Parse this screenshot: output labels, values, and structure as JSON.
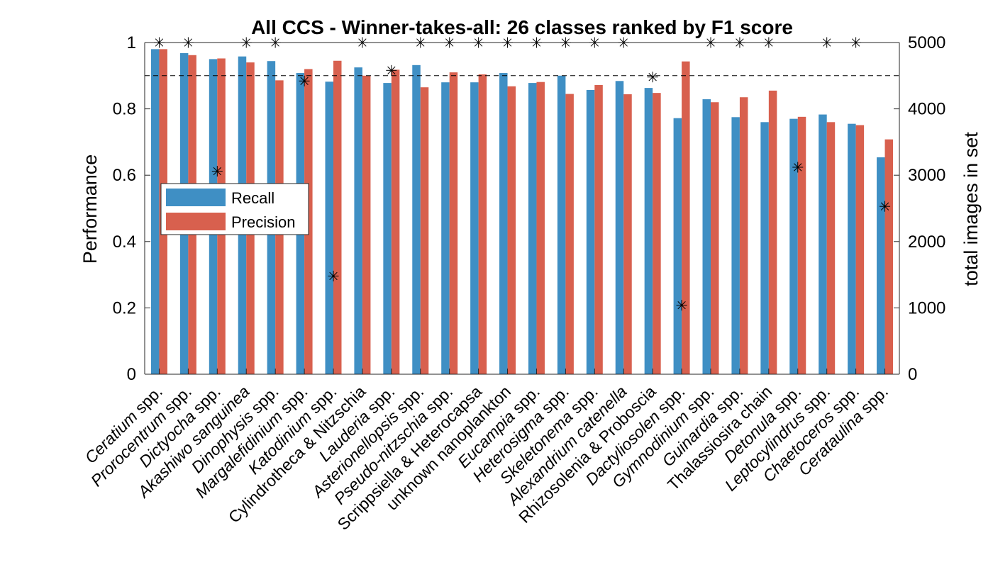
{
  "chart_data": {
    "type": "bar",
    "title": "All CCS - Winner-takes-all: 26 classes ranked by F1 score",
    "ylabel": "Performance",
    "ylabel_right": "total images in set",
    "ylim": [
      0,
      1
    ],
    "ylim_right": [
      0,
      5000
    ],
    "yticks": [
      "0",
      "0.2",
      "0.4",
      "0.6",
      "0.8",
      "1"
    ],
    "yticks_right": [
      "0",
      "1000",
      "2000",
      "3000",
      "4000",
      "5000"
    ],
    "reference_line": 0.9,
    "legend_position": "left-middle",
    "categories": [
      {
        "name": "Ceratium",
        "suffix": " spp.",
        "italic": true
      },
      {
        "name": "Prorocentrum",
        "suffix": " spp.",
        "italic": true
      },
      {
        "name": "Dictyocha",
        "suffix": " spp.",
        "italic": true
      },
      {
        "name": "Akashiwo sanguinea",
        "suffix": "",
        "italic": true
      },
      {
        "name": "Dinophysis",
        "suffix": " spp.",
        "italic": true
      },
      {
        "name": "Margalefidinium",
        "suffix": " spp.",
        "italic": true
      },
      {
        "name": "Katodinium",
        "suffix": " spp.",
        "italic": true
      },
      {
        "name": "Cylindrotheca & Nitzschia",
        "suffix": "",
        "italic": false
      },
      {
        "name": "Lauderia",
        "suffix": " spp.",
        "italic": true
      },
      {
        "name": "Asterionellopsis",
        "suffix": " spp.",
        "italic": true
      },
      {
        "name": "Pseudo-nitzschia",
        "suffix": " spp.",
        "italic": true
      },
      {
        "name": "Scrippsiella & Heterocapsa",
        "suffix": "",
        "italic": false
      },
      {
        "name": "unknown nanoplankton",
        "suffix": "",
        "italic": false
      },
      {
        "name": "Eucampia",
        "suffix": " spp.",
        "italic": true
      },
      {
        "name": "Heterosigma",
        "suffix": " spp.",
        "italic": true
      },
      {
        "name": "Skeletonema",
        "suffix": " spp.",
        "italic": true
      },
      {
        "name": "Alexandrium catenella",
        "suffix": "",
        "italic": true
      },
      {
        "name": "Rhizosolenia & Proboscia",
        "suffix": "",
        "italic": false
      },
      {
        "name": "Dactyliosolen",
        "suffix": " spp.",
        "italic": true
      },
      {
        "name": "Gymnodinium",
        "suffix": " spp.",
        "italic": true
      },
      {
        "name": "Guinardia",
        "suffix": " spp.",
        "italic": true
      },
      {
        "name": "Thalassiosira chain",
        "suffix": "",
        "italic": false
      },
      {
        "name": "Detonula",
        "suffix": " spp.",
        "italic": true
      },
      {
        "name": "Leptocylindrus",
        "suffix": " spp.",
        "italic": true
      },
      {
        "name": "Chaetoceros",
        "suffix": " spp.",
        "italic": true
      },
      {
        "name": "Cerataulina",
        "suffix": " spp.",
        "italic": true
      }
    ],
    "series": [
      {
        "name": "Recall",
        "color": "#3f8fc4",
        "values": [
          0.98,
          0.968,
          0.95,
          0.958,
          0.944,
          0.908,
          0.882,
          0.925,
          0.878,
          0.932,
          0.88,
          0.88,
          0.908,
          0.878,
          0.9,
          0.857,
          0.884,
          0.863,
          0.772,
          0.829,
          0.775,
          0.76,
          0.77,
          0.783,
          0.755,
          0.654
        ]
      },
      {
        "name": "Precision",
        "color": "#d8604e",
        "values": [
          0.98,
          0.962,
          0.952,
          0.94,
          0.886,
          0.92,
          0.945,
          0.9,
          0.918,
          0.865,
          0.91,
          0.904,
          0.868,
          0.881,
          0.845,
          0.872,
          0.844,
          0.848,
          0.943,
          0.82,
          0.835,
          0.855,
          0.776,
          0.76,
          0.751,
          0.708
        ]
      }
    ],
    "total_images": {
      "axis": "right",
      "marker": "asterisk",
      "values": [
        5000,
        5000,
        3060,
        5000,
        5000,
        4420,
        1480,
        5000,
        4580,
        5000,
        5000,
        5000,
        5000,
        5000,
        5000,
        5000,
        5000,
        4480,
        1040,
        5000,
        5000,
        5000,
        3120,
        5000,
        5000,
        2530
      ]
    }
  }
}
